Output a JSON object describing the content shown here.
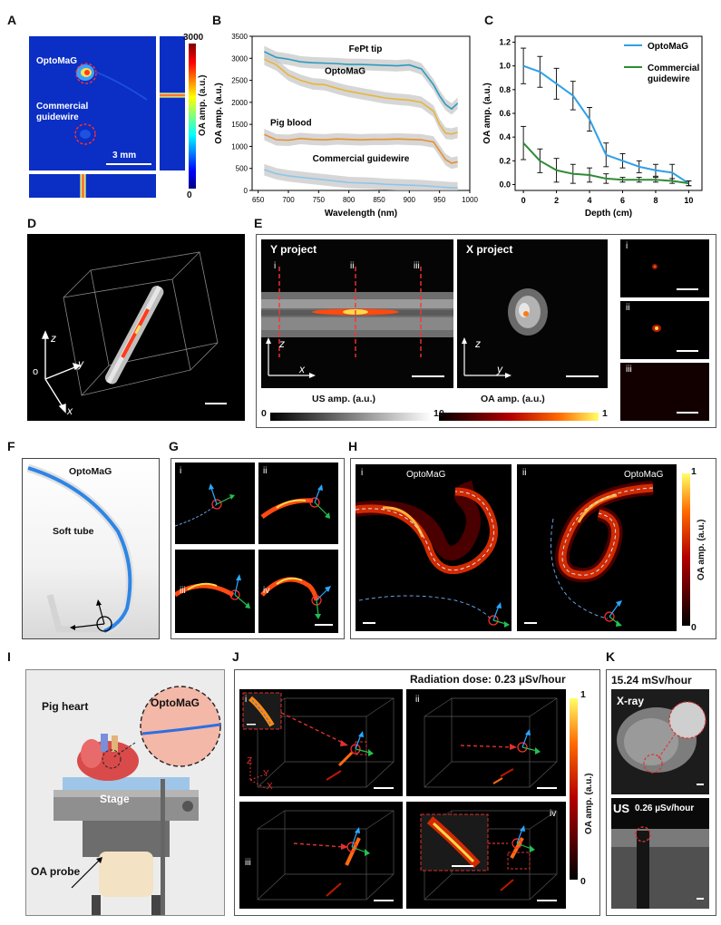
{
  "panels": {
    "A": "A",
    "B": "B",
    "C": "C",
    "D": "D",
    "E": "E",
    "F": "F",
    "G": "G",
    "H": "H",
    "I": "I",
    "J": "J",
    "K": "K"
  },
  "panel_a": {
    "optomag": "OptoMaG",
    "commercial_1": "Commercial",
    "commercial_2": "guidewire",
    "scale": "3 mm",
    "cbar_max": "3000",
    "cbar_min": "0",
    "cbar_label": "OA amp. (a.u.)"
  },
  "chart_data": [
    {
      "type": "line",
      "xlabel": "Wavelength (nm)",
      "ylabel": "OA amp. (a.u.)",
      "xlim": [
        640,
        1000
      ],
      "ylim": [
        0,
        3500
      ],
      "xticks": [
        650,
        700,
        750,
        800,
        850,
        900,
        950,
        1000
      ],
      "yticks": [
        0,
        500,
        1000,
        1500,
        2000,
        2500,
        3000,
        3500
      ],
      "x": [
        660,
        680,
        700,
        720,
        740,
        760,
        780,
        800,
        820,
        840,
        860,
        880,
        900,
        920,
        940,
        950,
        960,
        970,
        980
      ],
      "series": [
        {
          "name": "FePt tip",
          "color": "#2b9bbf",
          "values": [
            3150,
            3020,
            2980,
            2920,
            2900,
            2890,
            2880,
            2860,
            2860,
            2850,
            2840,
            2830,
            2850,
            2760,
            2400,
            2150,
            1950,
            1850,
            1980
          ]
        },
        {
          "name": "OptoMaG",
          "color": "#e8b53a",
          "values": [
            2980,
            2850,
            2620,
            2500,
            2420,
            2400,
            2320,
            2250,
            2200,
            2150,
            2100,
            2070,
            2050,
            2000,
            1800,
            1500,
            1300,
            1280,
            1320
          ]
        },
        {
          "name": "Pig blood",
          "color": "#e8902d",
          "values": [
            1270,
            1150,
            1140,
            1180,
            1160,
            1150,
            1170,
            1160,
            1150,
            1160,
            1160,
            1170,
            1160,
            1150,
            1100,
            900,
            700,
            620,
            650
          ]
        },
        {
          "name": "Commercial guidewire",
          "color": "#8ec6e8",
          "values": [
            470,
            380,
            330,
            300,
            270,
            240,
            210,
            180,
            170,
            160,
            140,
            130,
            120,
            110,
            90,
            80,
            70,
            60,
            60
          ]
        }
      ]
    },
    {
      "type": "line",
      "xlabel": "Depth (cm)",
      "ylabel": "OA amp. (a.u.)",
      "xlim": [
        -0.5,
        10.8
      ],
      "ylim": [
        -0.05,
        1.25
      ],
      "xticks": [
        0,
        2,
        4,
        6,
        8,
        10
      ],
      "yticks": [
        0.0,
        0.2,
        0.4,
        0.6,
        0.8,
        1.0,
        1.2
      ],
      "x": [
        0,
        1,
        2,
        3,
        4,
        5,
        6,
        7,
        8,
        9,
        10
      ],
      "series": [
        {
          "name": "OptoMaG",
          "color": "#2ea0e6",
          "values": [
            1.0,
            0.95,
            0.85,
            0.75,
            0.55,
            0.25,
            0.2,
            0.15,
            0.12,
            0.1,
            0.01
          ],
          "errors": [
            0.15,
            0.13,
            0.13,
            0.12,
            0.1,
            0.1,
            0.06,
            0.05,
            0.05,
            0.07,
            0.02
          ]
        },
        {
          "name": "Commercial guidewire",
          "color": "#2e8b35",
          "values": [
            0.35,
            0.2,
            0.12,
            0.09,
            0.08,
            0.05,
            0.04,
            0.04,
            0.04,
            0.03,
            0.01
          ],
          "errors": [
            0.14,
            0.1,
            0.1,
            0.08,
            0.06,
            0.04,
            0.02,
            0.02,
            0.02,
            0.02,
            0.02
          ]
        }
      ],
      "legend": [
        "OptoMaG",
        "Commercial",
        "guidewire"
      ]
    }
  ],
  "panel_d": {
    "z": "z",
    "y": "y",
    "x": "x",
    "o": "o"
  },
  "panel_e": {
    "y_project": "Y project",
    "x_project": "X project",
    "i": "i",
    "ii": "ii",
    "iii": "iii",
    "z": "z",
    "x": "x",
    "y": "y",
    "us_label": "US amp. (a.u.)",
    "oa_label": "OA amp. (a.u.)",
    "us_min": "0",
    "us_max": "1",
    "oa_min": "0",
    "oa_max": "1"
  },
  "panel_f": {
    "optomag": "OptoMaG",
    "soft_tube": "Soft tube"
  },
  "panel_g": {
    "i": "i",
    "ii": "ii",
    "iii": "iii",
    "iv": "iv"
  },
  "panel_h": {
    "i": "i",
    "ii": "ii",
    "opt_i": "OptoMaG",
    "opt_ii": "OptoMaG",
    "cbar_max": "1",
    "cbar_min": "0",
    "cbar_label": "OA amp. (a.u.)"
  },
  "panel_i": {
    "pig_heart": "Pig heart",
    "optomag": "OptoMaG",
    "stage": "Stage",
    "oa_probe": "OA probe"
  },
  "panel_j": {
    "dose": "Radiation dose: 0.23 µSv/hour",
    "i": "i",
    "ii": "ii",
    "iii": "iii",
    "iv": "iv",
    "cbar_max": "1",
    "cbar_min": "0",
    "cbar_label": "OA amp. (a.u.)",
    "z": "Z",
    "y": "Y",
    "x": "X"
  },
  "panel_k": {
    "xray_dose": "15.24 mSv/hour",
    "xray": "X-ray",
    "us": "US",
    "us_dose": "0.26 µSv/hour"
  }
}
